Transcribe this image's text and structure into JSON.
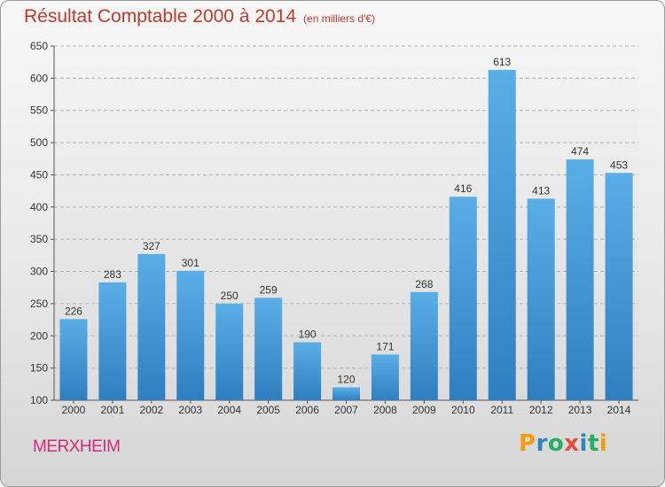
{
  "header": {
    "title": "Résultat Comptable 2000 à 2014",
    "unit": "(en milliers d'€)"
  },
  "footer": {
    "location": "MERXHEIM",
    "logo_text": "Proxiti"
  },
  "colors": {
    "title": "#c0392b",
    "location": "#d12b7a",
    "bar_top": "#5aaee6",
    "bar_bottom": "#2f7fc0",
    "logo_letters": [
      "#f39c12",
      "#2e86c1",
      "#27ae60",
      "#e74c3c",
      "#2e86c1",
      "#27ae60",
      "#f39c12"
    ]
  },
  "chart_data": {
    "type": "bar",
    "title": "Résultat Comptable 2000 à 2014",
    "subtitle": "(en milliers d'€)",
    "xlabel": "",
    "ylabel": "",
    "categories": [
      "2000",
      "2001",
      "2002",
      "2003",
      "2004",
      "2005",
      "2006",
      "2007",
      "2008",
      "2009",
      "2010",
      "2011",
      "2012",
      "2013",
      "2014"
    ],
    "values": [
      226,
      283,
      327,
      301,
      250,
      259,
      190,
      120,
      171,
      268,
      416,
      613,
      413,
      474,
      453
    ],
    "ylim": [
      100,
      650
    ],
    "yticks": [
      100,
      150,
      200,
      250,
      300,
      350,
      400,
      450,
      500,
      550,
      600,
      650
    ],
    "grid": "horizontal-dashed",
    "legend": "none",
    "data_labels": true
  }
}
